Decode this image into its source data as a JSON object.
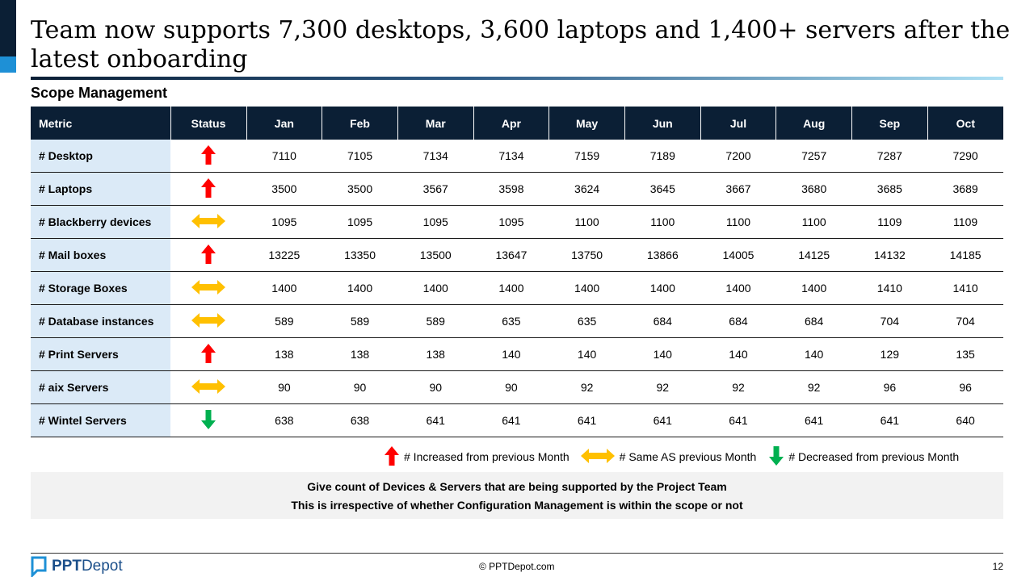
{
  "title": "Team now supports 7,300 desktops, 3,600 laptops and 1,400+ servers after the latest onboarding",
  "section_label": "Scope Management",
  "table": {
    "headers": [
      "Metric",
      "Status",
      "Jan",
      "Feb",
      "Mar",
      "Apr",
      "May",
      "Jun",
      "Jul",
      "Aug",
      "Sep",
      "Oct"
    ],
    "rows": [
      {
        "metric": "# Desktop",
        "status": "up",
        "values": [
          "7110",
          "7105",
          "7134",
          "7134",
          "7159",
          "7189",
          "7200",
          "7257",
          "7287",
          "7290"
        ]
      },
      {
        "metric": "# Laptops",
        "status": "up",
        "values": [
          "3500",
          "3500",
          "3567",
          "3598",
          "3624",
          "3645",
          "3667",
          "3680",
          "3685",
          "3689"
        ]
      },
      {
        "metric": "# Blackberry devices",
        "status": "same",
        "values": [
          "1095",
          "1095",
          "1095",
          "1095",
          "1100",
          "1100",
          "1100",
          "1100",
          "1109",
          "1109"
        ]
      },
      {
        "metric": "# Mail boxes",
        "status": "up",
        "values": [
          "13225",
          "13350",
          "13500",
          "13647",
          "13750",
          "13866",
          "14005",
          "14125",
          "14132",
          "14185"
        ]
      },
      {
        "metric": "# Storage Boxes",
        "status": "same",
        "values": [
          "1400",
          "1400",
          "1400",
          "1400",
          "1400",
          "1400",
          "1400",
          "1400",
          "1410",
          "1410"
        ]
      },
      {
        "metric": "# Database instances",
        "status": "same",
        "values": [
          "589",
          "589",
          "589",
          "635",
          "635",
          "684",
          "684",
          "684",
          "704",
          "704"
        ]
      },
      {
        "metric": "# Print Servers",
        "status": "up",
        "values": [
          "138",
          "138",
          "138",
          "140",
          "140",
          "140",
          "140",
          "140",
          "129",
          "135"
        ]
      },
      {
        "metric": "# aix Servers",
        "status": "same",
        "values": [
          "90",
          "90",
          "90",
          "90",
          "92",
          "92",
          "92",
          "92",
          "96",
          "96"
        ]
      },
      {
        "metric": "# Wintel Servers",
        "status": "down",
        "values": [
          "638",
          "638",
          "641",
          "641",
          "641",
          "641",
          "641",
          "641",
          "641",
          "640"
        ]
      }
    ]
  },
  "status_icons": {
    "up": {
      "icon": "arrow-up-icon",
      "color": "#ff0000"
    },
    "same": {
      "icon": "arrow-left-right-icon",
      "color": "#ffc000"
    },
    "down": {
      "icon": "arrow-down-icon",
      "color": "#00b050"
    }
  },
  "legend": {
    "up": "# Increased from previous Month",
    "same": "# Same AS previous Month",
    "down": "# Decreased from  previous Month"
  },
  "note": {
    "line1": "Give count of  Devices & Servers that are being supported by the Project Team",
    "line2": "This is irrespective of whether Configuration Management is within the scope or not"
  },
  "footer": {
    "logo_bold": "PPT",
    "logo_rest": "Depot",
    "copyright": "© PPTDepot.com",
    "page_number": "12"
  },
  "colors": {
    "header_bg": "#0b1f35",
    "metric_bg": "#dbeaf7",
    "accent_blue": "#1e90d6"
  }
}
